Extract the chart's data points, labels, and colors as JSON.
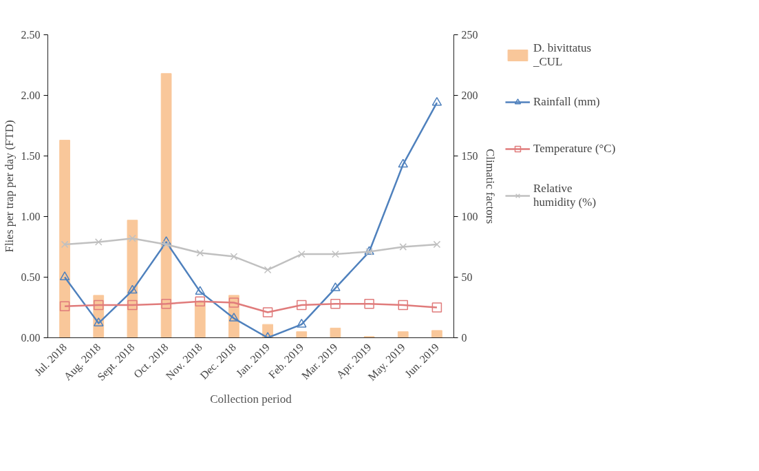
{
  "chart_data": {
    "type": "bar",
    "xlabel": "Collection period",
    "ylabel": "Flies per trap per day (FTD)",
    "y2label": "Climatic factors",
    "categories": [
      "Jul. 2018",
      "Aug. 2018",
      "Sept. 2018",
      "Oct. 2018",
      "Nov. 2018",
      "Dec. 2018",
      "Jan. 2019",
      "Feb. 2019",
      "Mar. 2019",
      "Apr. 2019",
      "May. 2019",
      "Jun. 2019"
    ],
    "series": [
      {
        "name": "D. bivittatus _CUL",
        "color": "#f9c79a",
        "values": [
          1.63,
          0.35,
          0.97,
          2.18,
          0.3,
          0.35,
          0.11,
          0.05,
          0.08,
          0.01,
          0.05,
          0.06
        ]
      },
      {
        "name": "Rainfall (mm)",
        "type": "line",
        "axis": "y2",
        "marker": "triangle",
        "color": "#4f81bd",
        "values": [
          50,
          12,
          39,
          79,
          38,
          16,
          0,
          11,
          41,
          71,
          143,
          194
        ]
      },
      {
        "name": "Temperature (°C)",
        "type": "line",
        "axis": "y2",
        "marker": "square",
        "color": "#e07b7b",
        "values": [
          26,
          27,
          27,
          28,
          30,
          29,
          21,
          27,
          28,
          28,
          27,
          25
        ]
      },
      {
        "name": "Relative humidity (%)",
        "type": "line",
        "axis": "y2",
        "marker": "cross",
        "color": "#c0c0c0",
        "values": [
          77,
          79,
          82,
          77,
          70,
          67,
          56,
          69,
          69,
          71,
          75,
          77
        ]
      }
    ],
    "ylim": [
      0,
      2.5
    ],
    "yticks": [
      {
        "value": 0,
        "label": "0.00"
      },
      {
        "value": 0.5,
        "label": "0.50"
      },
      {
        "value": 1,
        "label": "1.00"
      },
      {
        "value": 1.5,
        "label": "1.50"
      },
      {
        "value": 2,
        "label": "2.00"
      },
      {
        "value": 2.5,
        "label": "2.50"
      }
    ],
    "y2lim": [
      0,
      250
    ],
    "y2ticks": [
      0,
      50,
      100,
      150,
      200,
      250
    ],
    "grid": false,
    "legend": "right",
    "line_style": "solid"
  }
}
